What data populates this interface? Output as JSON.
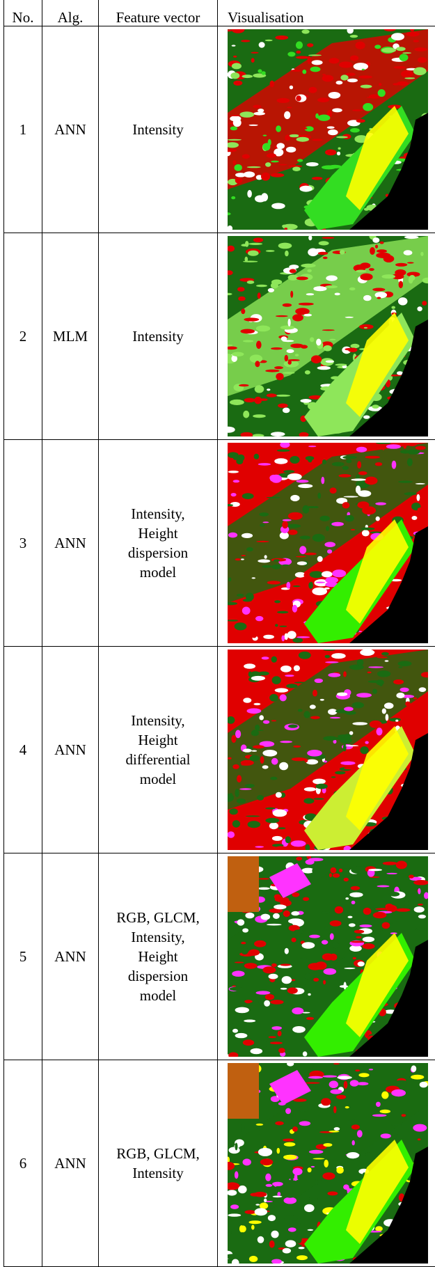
{
  "table": {
    "header": [
      "No.",
      "Alg.",
      "Feature vector",
      "Visualisation"
    ],
    "rows": [
      {
        "no": "1",
        "alg": "ANN",
        "feature": [
          "Intensity"
        ]
      },
      {
        "no": "2",
        "alg": "MLM",
        "feature": [
          "Intensity"
        ]
      },
      {
        "no": "3",
        "alg": "ANN",
        "feature": [
          "Intensity,",
          "Height",
          "dispersion",
          "model"
        ]
      },
      {
        "no": "4",
        "alg": "ANN",
        "feature": [
          "Intensity,",
          "Height",
          "differential",
          "model"
        ]
      },
      {
        "no": "5",
        "alg": "ANN",
        "feature": [
          "RGB, GLCM,",
          "Intensity,",
          "Height",
          "dispersion",
          "model"
        ]
      },
      {
        "no": "6",
        "alg": "ANN",
        "feature": [
          "RGB, GLCM,",
          "Intensity"
        ]
      }
    ]
  }
}
